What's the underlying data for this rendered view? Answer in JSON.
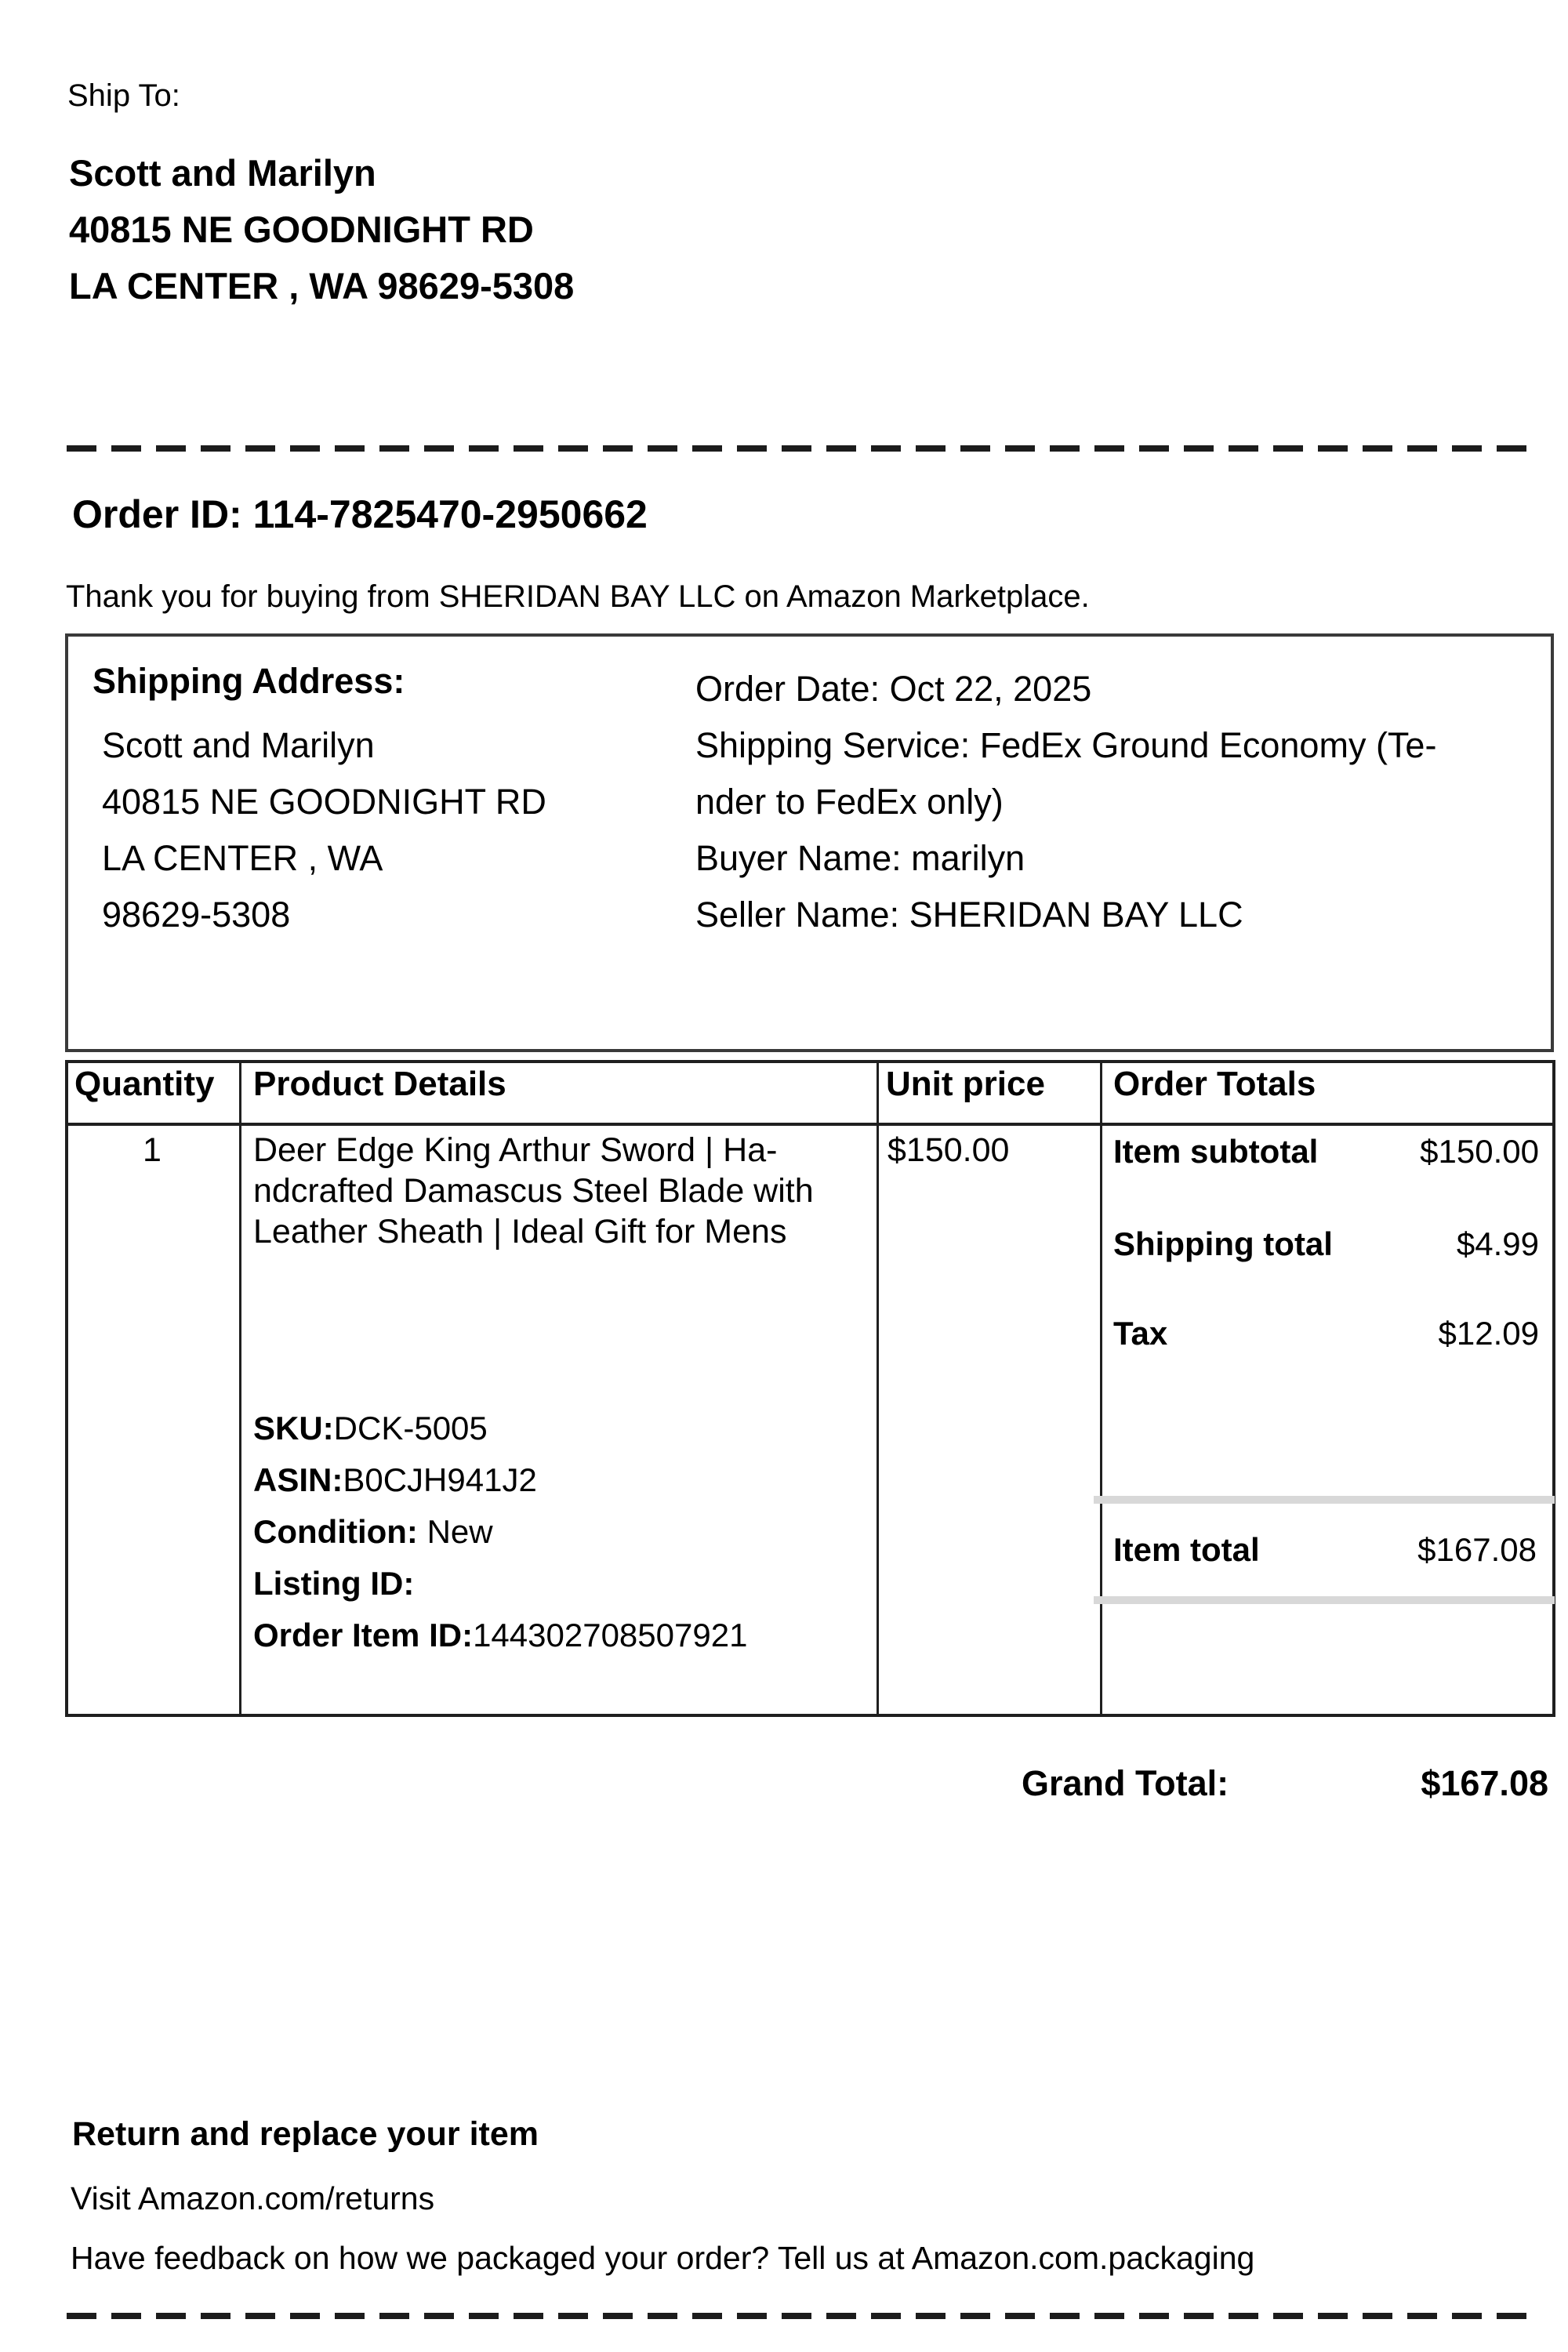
{
  "colors": {
    "text": "#000000",
    "rule": "#1f1f1f",
    "item_total_band": "#d8d8d8"
  },
  "doc": {
    "ship_to": {
      "label": "Ship To:",
      "lines": [
        "Scott and Marilyn",
        "40815 NE GOODNIGHT RD",
        "LA CENTER , WA 98629-5308"
      ]
    },
    "order_id_line": "Order ID: 114-7825470-2950662",
    "thank_you": "Thank you for buying from SHERIDAN BAY LLC on Amazon Marketplace.",
    "shipping_box": {
      "heading": "Shipping Address:",
      "address_lines": [
        "Scott and Marilyn",
        "40815 NE GOODNIGHT RD",
        "LA CENTER , WA",
        "98629-5308"
      ],
      "meta_lines": [
        "Order Date: Oct 22, 2025",
        "Shipping Service: FedEx Ground Economy (Te-",
        "nder to FedEx only)",
        "Buyer Name: marilyn",
        "Seller Name: SHERIDAN BAY LLC"
      ]
    },
    "table": {
      "headers": {
        "quantity": "Quantity",
        "product": "Product Details",
        "unit_price": "Unit price",
        "order_totals": "Order Totals"
      },
      "row": {
        "quantity": "1",
        "product_lines": [
          "Deer Edge King Arthur Sword | Ha-",
          "ndcrafted Damascus Steel Blade with",
          "Leather Sheath | Ideal Gift for Mens"
        ],
        "unit_price": "$150.00",
        "attributes": [
          {
            "label": "SKU:",
            "value": "DCK-5005"
          },
          {
            "label": "ASIN:",
            "value": "B0CJH941J2"
          },
          {
            "label": "Condition:",
            "value": " New"
          },
          {
            "label": "Listing ID:",
            "value": ""
          },
          {
            "label": "Order Item ID:",
            "value": "144302708507921"
          }
        ],
        "totals": [
          {
            "label": "Item subtotal",
            "value": "$150.00"
          },
          {
            "label": "Shipping total",
            "value": "$4.99"
          },
          {
            "label": "Tax",
            "value": "$12.09"
          }
        ],
        "item_total": {
          "label": "Item total",
          "value": "$167.08"
        }
      }
    },
    "grand_total": {
      "label": "Grand Total:",
      "value": "$167.08"
    },
    "footer": {
      "return_heading": "Return and replace your item",
      "return_line": "Visit Amazon.com/returns",
      "feedback_line": "Have feedback on how we packaged your order? Tell us at Amazon.com.packaging"
    }
  }
}
